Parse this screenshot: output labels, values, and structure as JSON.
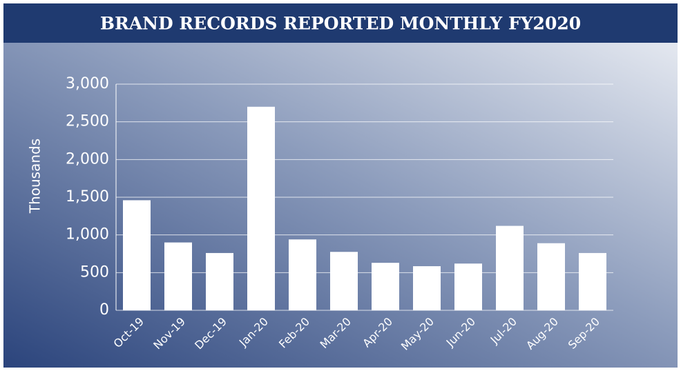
{
  "chart_data": {
    "type": "bar",
    "title": "BRAND RECORDS REPORTED MONTHLY FY2020",
    "y_label": "Thousands",
    "categories": [
      "Oct-19",
      "Nov-19",
      "Dec-19",
      "Jan-20",
      "Feb-20",
      "Mar-20",
      "Apr-20",
      "May-20",
      "Jun-20",
      "Jul-20",
      "Aug-20",
      "Sep-20"
    ],
    "values": [
      1460,
      900,
      760,
      2700,
      940,
      775,
      630,
      585,
      620,
      1120,
      890,
      760
    ],
    "color": "#ffffff",
    "ylim": [
      0,
      3000
    ],
    "yticks": [
      0,
      500,
      {
        "value": 1000,
        "label": "1,000"
      },
      {
        "value": 1500,
        "label": "1,500"
      },
      {
        "value": 2000,
        "label": "2,000"
      },
      {
        "value": 2500,
        "label": "2,500"
      },
      {
        "value": 3000,
        "label": "3,000"
      }
    ],
    "grid": true
  }
}
